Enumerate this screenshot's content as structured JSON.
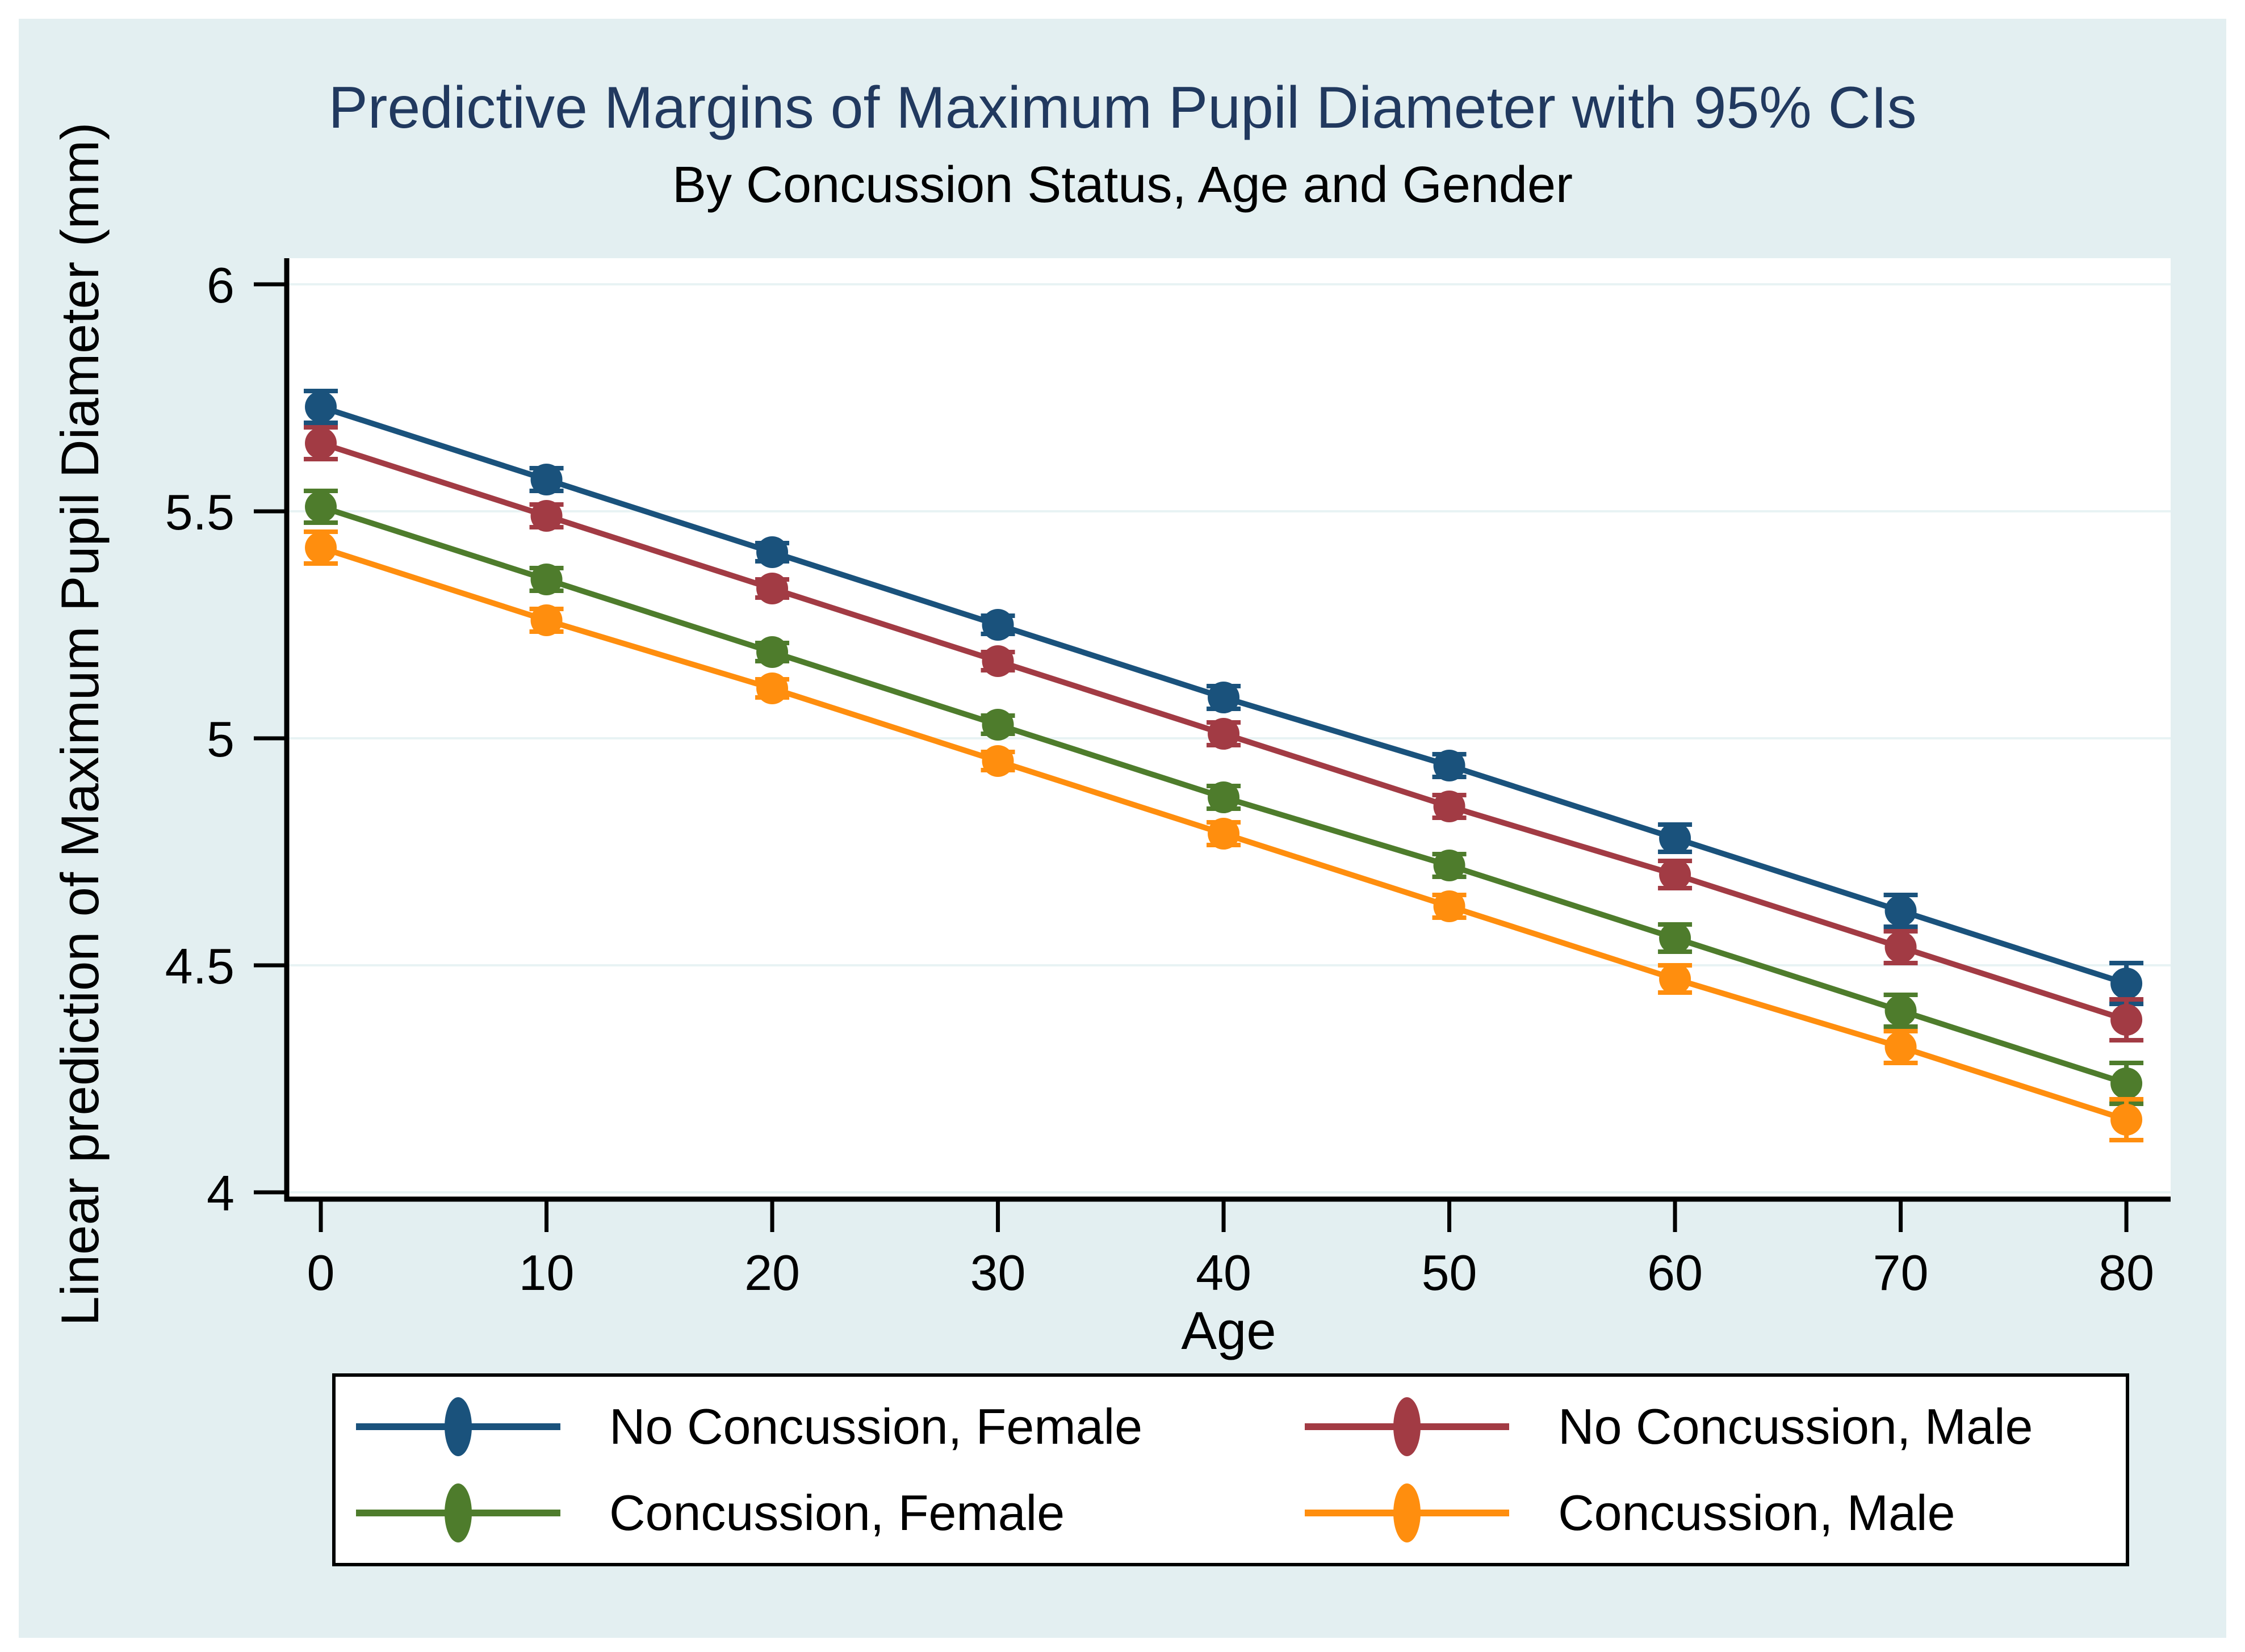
{
  "figure": {
    "background_color": "#e3eff1",
    "plot_background_color": "#ffffff",
    "title_color": "#21395f"
  },
  "chart_data": {
    "type": "line",
    "title": "Predictive Margins of Maximum Pupil Diameter with 95% CIs",
    "subtitle": "By Concussion Status, Age and Gender",
    "xlabel": "Age",
    "ylabel": "Linear prediction of Maximum Pupil Diameter (mm)",
    "x": [
      0,
      10,
      20,
      30,
      40,
      50,
      60,
      70,
      80
    ],
    "xticks": [
      0,
      10,
      20,
      30,
      40,
      50,
      60,
      70,
      80
    ],
    "yticks": [
      4,
      4.5,
      5,
      5.5,
      6
    ],
    "xlim": [
      -1.51,
      81.96
    ],
    "ylim": [
      3.985,
      6.0575
    ],
    "grid": "horizontal-only",
    "grid_color": "#e8f3f4",
    "axis_color": "#000000",
    "legend_position": "bottom",
    "error_bars": "95% CI",
    "series": [
      {
        "name": "No Concussion, Female",
        "color": "#1a527c",
        "values": [
          5.73,
          5.57,
          5.41,
          5.25,
          5.09,
          4.94,
          4.78,
          4.62,
          4.46
        ],
        "ci": [
          0.035,
          0.025,
          0.02,
          0.02,
          0.025,
          0.025,
          0.03,
          0.035,
          0.045
        ]
      },
      {
        "name": "No Concussion, Male",
        "color": "#a23b44",
        "values": [
          5.65,
          5.49,
          5.33,
          5.17,
          5.01,
          4.85,
          4.7,
          4.54,
          4.38
        ],
        "ci": [
          0.035,
          0.025,
          0.02,
          0.02,
          0.025,
          0.025,
          0.03,
          0.035,
          0.045
        ]
      },
      {
        "name": "Concussion, Female",
        "color": "#4e7c2c",
        "values": [
          5.51,
          5.35,
          5.19,
          5.03,
          4.87,
          4.72,
          4.56,
          4.4,
          4.24
        ],
        "ci": [
          0.035,
          0.025,
          0.02,
          0.02,
          0.025,
          0.025,
          0.03,
          0.035,
          0.045
        ]
      },
      {
        "name": "Concussion, Male",
        "color": "#ff8e0e",
        "values": [
          5.42,
          5.26,
          5.11,
          4.95,
          4.79,
          4.63,
          4.47,
          4.32,
          4.16
        ],
        "ci": [
          0.035,
          0.025,
          0.02,
          0.02,
          0.025,
          0.025,
          0.03,
          0.035,
          0.045
        ]
      }
    ]
  }
}
